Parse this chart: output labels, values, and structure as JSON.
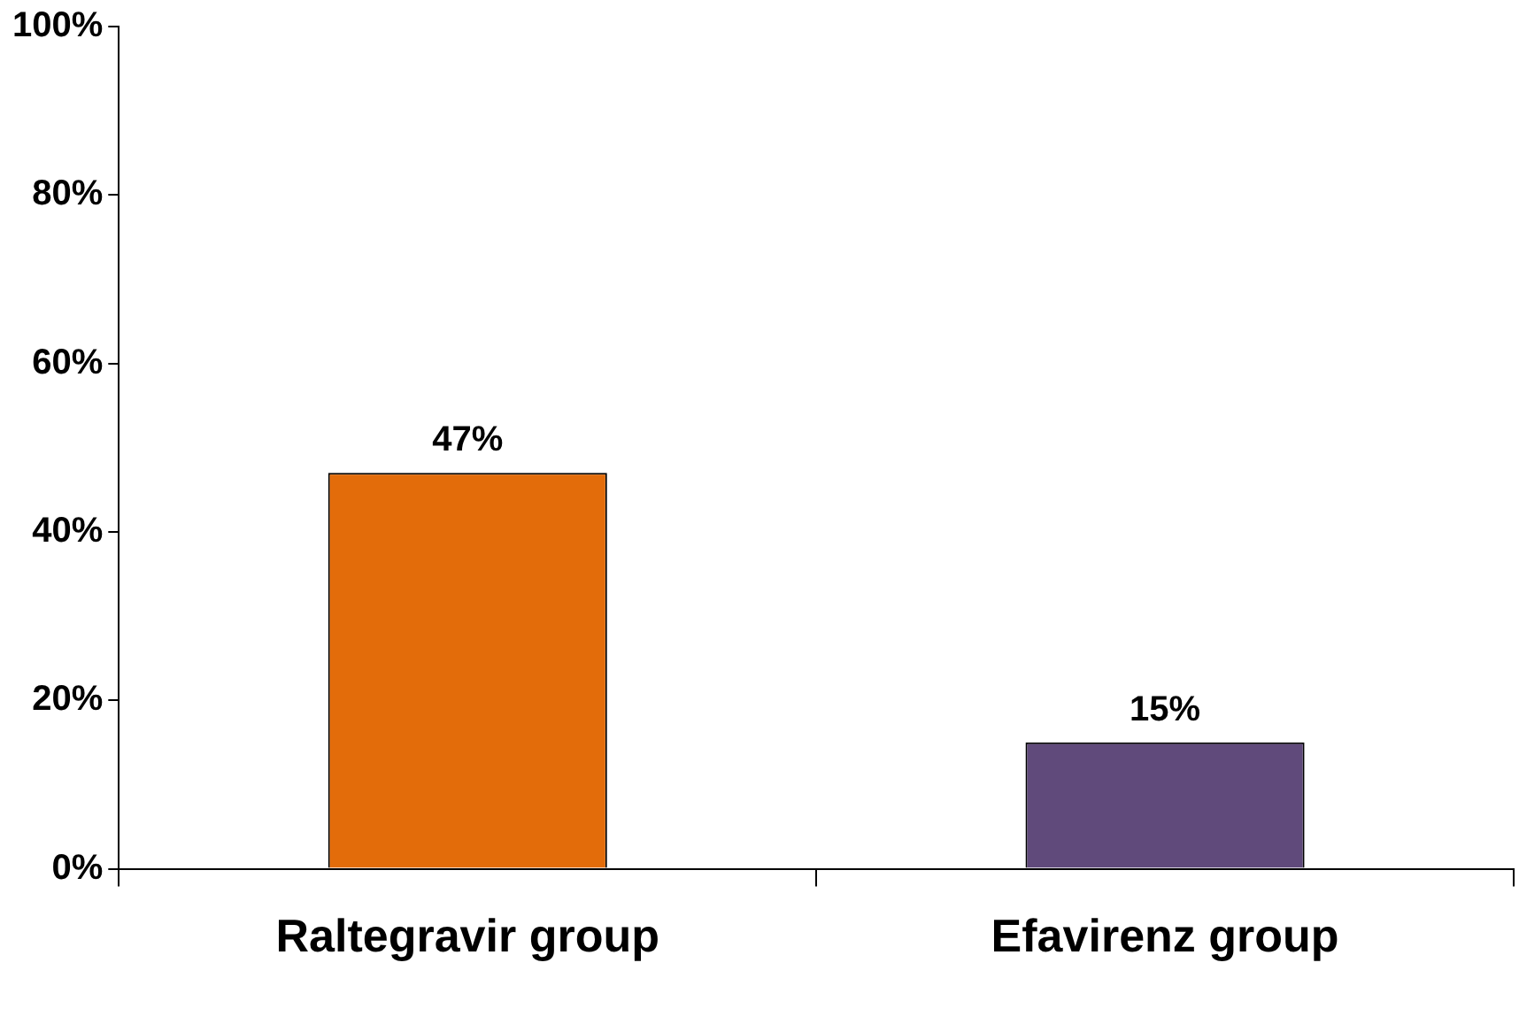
{
  "chart_data": {
    "type": "bar",
    "categories": [
      "Raltegravir group",
      "Efavirenz group"
    ],
    "values": [
      47,
      15
    ],
    "colors": [
      "#e36c0a",
      "#604a7b"
    ],
    "value_labels": [
      "47%",
      "15%"
    ],
    "ylim": [
      0,
      100
    ],
    "yticks": [
      {
        "value": 0,
        "label": "0%"
      },
      {
        "value": 20,
        "label": "20%"
      },
      {
        "value": 40,
        "label": "40%"
      },
      {
        "value": 60,
        "label": "60%"
      },
      {
        "value": 80,
        "label": "80%"
      },
      {
        "value": 100,
        "label": "100%"
      }
    ],
    "grid": false,
    "legend": false
  }
}
